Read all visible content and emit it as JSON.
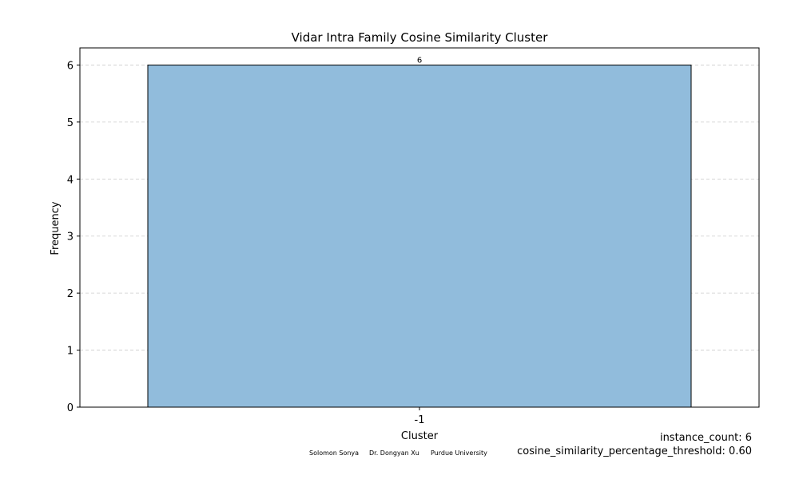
{
  "chart_data": {
    "type": "bar",
    "title": "Vidar Intra Family Cosine Similarity Cluster",
    "xlabel": "Cluster",
    "ylabel": "Frequency",
    "categories": [
      "-1"
    ],
    "values": [
      6
    ],
    "ylim": [
      0,
      6.3
    ],
    "yticks": [
      "0",
      "1",
      "2",
      "3",
      "4",
      "5",
      "6"
    ],
    "grid": "horizontal dashed",
    "bar_color": "#91bcdc",
    "bar_edge_color": "#000000",
    "grid_color": "#cccccc",
    "data_labels": [
      "6"
    ]
  },
  "credits": {
    "author1": "Solomon Sonya",
    "author2": "Dr. Dongyan Xu",
    "institution": "Purdue University"
  },
  "stats": {
    "instance_count": "instance_count: 6",
    "threshold": "cosine_similarity_percentage_threshold: 0.60"
  }
}
